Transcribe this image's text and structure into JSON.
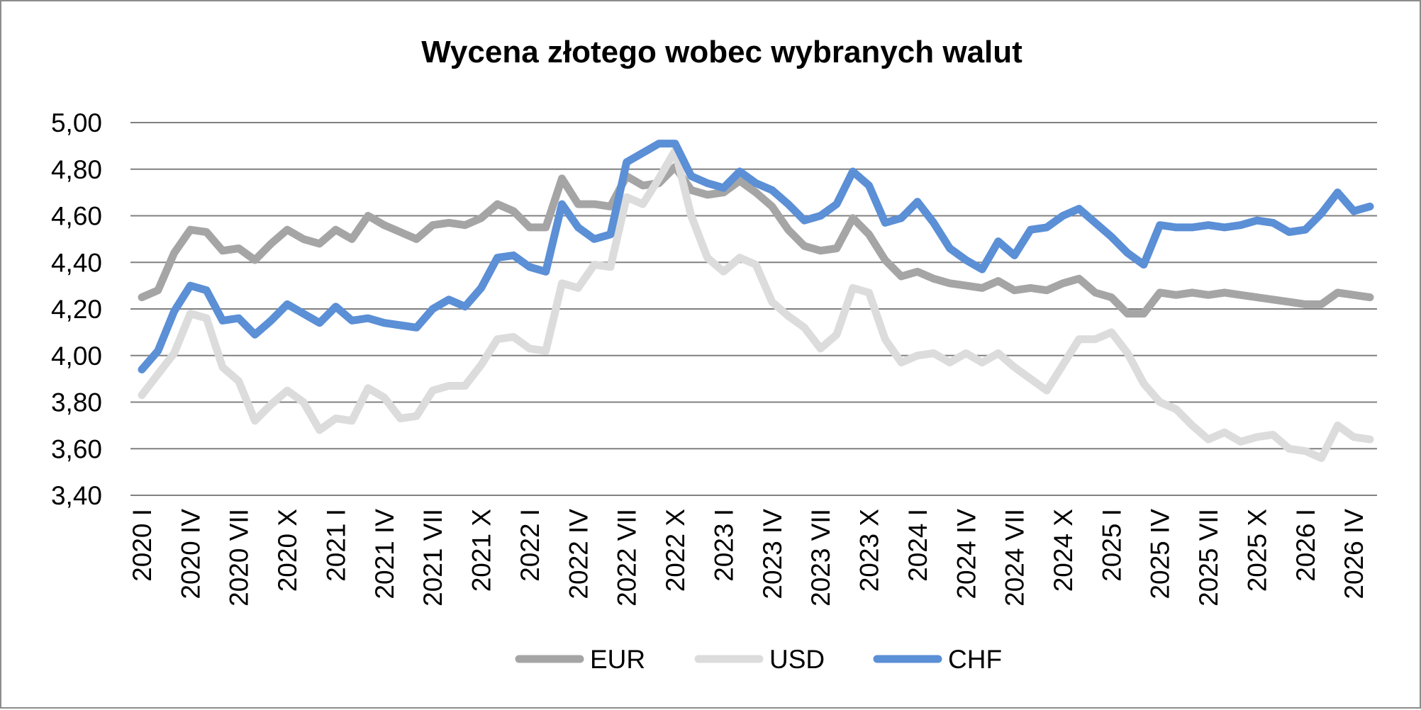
{
  "chart_data": {
    "type": "line",
    "title": "Wycena złotego wobec wybranych walut",
    "xlabel": "",
    "ylabel": "",
    "ylim": [
      3.4,
      5.0
    ],
    "y_ticks": [
      "5,00",
      "4,80",
      "4,60",
      "4,40",
      "4,20",
      "4,00",
      "3,80",
      "3,60",
      "3,40"
    ],
    "y_tick_values": [
      5.0,
      4.8,
      4.6,
      4.4,
      4.2,
      4.0,
      3.8,
      3.6,
      3.4
    ],
    "grid": true,
    "legend_position": "bottom",
    "x_tick_labels": [
      "2020 I",
      "2020 IV",
      "2020 VII",
      "2020 X",
      "2021 I",
      "2021 IV",
      "2021 VII",
      "2021 X",
      "2022 I",
      "2022 IV",
      "2022 VII",
      "2022 X",
      "2023 I",
      "2023 IV",
      "2023 VII",
      "2023 X",
      "2024 I",
      "2024 IV",
      "2024 VII",
      "2024 X",
      "2025 I",
      "2025 IV",
      "2025 VII",
      "2025 X",
      "2026 I",
      "2026 IV"
    ],
    "x_tick_every": 3,
    "series": [
      {
        "name": "EUR",
        "color": "#a5a5a5",
        "values": [
          4.25,
          4.28,
          4.44,
          4.54,
          4.53,
          4.45,
          4.46,
          4.41,
          4.48,
          4.54,
          4.5,
          4.48,
          4.54,
          4.5,
          4.6,
          4.56,
          4.53,
          4.5,
          4.56,
          4.57,
          4.56,
          4.59,
          4.65,
          4.62,
          4.55,
          4.55,
          4.76,
          4.65,
          4.65,
          4.64,
          4.77,
          4.73,
          4.74,
          4.81,
          4.71,
          4.69,
          4.7,
          4.75,
          4.7,
          4.64,
          4.54,
          4.47,
          4.45,
          4.46,
          4.59,
          4.52,
          4.41,
          4.34,
          4.36,
          4.33,
          4.31,
          4.3,
          4.29,
          4.32,
          4.28,
          4.29,
          4.28,
          4.31,
          4.33,
          4.27,
          4.25,
          4.18,
          4.18,
          4.27,
          4.26,
          4.27,
          4.26,
          4.27,
          4.26,
          4.25,
          4.24,
          4.23,
          4.22,
          4.22,
          4.27,
          4.26,
          4.25
        ]
      },
      {
        "name": "USD",
        "color": "#dcdcdc",
        "values": [
          3.83,
          3.92,
          4.01,
          4.18,
          4.16,
          3.95,
          3.89,
          3.72,
          3.79,
          3.85,
          3.8,
          3.68,
          3.73,
          3.72,
          3.86,
          3.82,
          3.73,
          3.74,
          3.85,
          3.87,
          3.87,
          3.96,
          4.07,
          4.08,
          4.03,
          4.02,
          4.31,
          4.29,
          4.39,
          4.38,
          4.68,
          4.65,
          4.76,
          4.88,
          4.6,
          4.42,
          4.36,
          4.42,
          4.39,
          4.23,
          4.17,
          4.12,
          4.03,
          4.09,
          4.29,
          4.27,
          4.07,
          3.97,
          4.0,
          4.01,
          3.97,
          4.01,
          3.97,
          4.01,
          3.95,
          3.9,
          3.85,
          3.96,
          4.07,
          4.07,
          4.1,
          4.01,
          3.88,
          3.8,
          3.77,
          3.7,
          3.64,
          3.67,
          3.63,
          3.65,
          3.66,
          3.6,
          3.59,
          3.56,
          3.7,
          3.65,
          3.64
        ]
      },
      {
        "name": "CHF",
        "color": "#5b8fd6",
        "values": [
          3.94,
          4.02,
          4.19,
          4.3,
          4.28,
          4.15,
          4.16,
          4.09,
          4.15,
          4.22,
          4.18,
          4.14,
          4.21,
          4.15,
          4.16,
          4.14,
          4.13,
          4.12,
          4.2,
          4.24,
          4.21,
          4.29,
          4.42,
          4.43,
          4.38,
          4.36,
          4.65,
          4.55,
          4.5,
          4.52,
          4.83,
          4.87,
          4.91,
          4.91,
          4.77,
          4.74,
          4.72,
          4.79,
          4.74,
          4.71,
          4.65,
          4.58,
          4.6,
          4.65,
          4.79,
          4.73,
          4.57,
          4.59,
          4.66,
          4.57,
          4.46,
          4.41,
          4.37,
          4.49,
          4.43,
          4.54,
          4.55,
          4.6,
          4.63,
          4.57,
          4.51,
          4.44,
          4.39,
          4.56,
          4.55,
          4.55,
          4.56,
          4.55,
          4.56,
          4.58,
          4.57,
          4.53,
          4.54,
          4.61,
          4.7,
          4.62,
          4.64
        ]
      }
    ]
  }
}
